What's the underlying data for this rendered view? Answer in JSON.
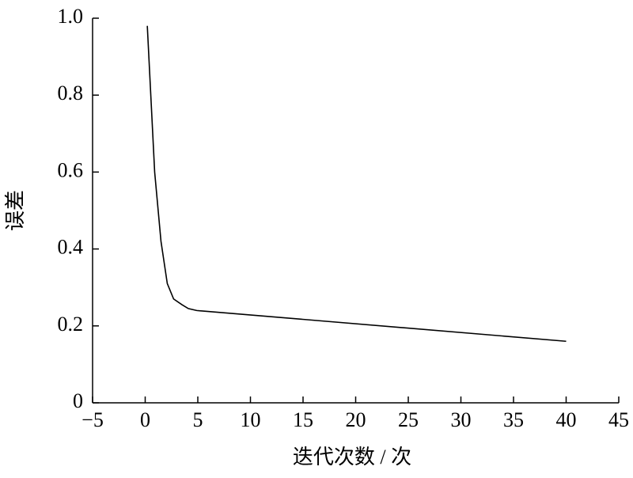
{
  "chart_data": {
    "type": "line",
    "x_label": "迭代次数 / 次",
    "y_label": "误差",
    "x": [
      0.2,
      0.9,
      1.5,
      2.1,
      2.7,
      3.5,
      4.1,
      4.9,
      40
    ],
    "series": [
      {
        "name": "误差",
        "color": "#000000",
        "values": [
          0.98,
          0.6,
          0.42,
          0.31,
          0.27,
          0.255,
          0.245,
          0.24,
          0.16
        ]
      }
    ],
    "xlim": [
      -5,
      45
    ],
    "xticks": [
      {
        "value": -5,
        "label": "−5"
      },
      0,
      5,
      10,
      15,
      20,
      25,
      30,
      35,
      40,
      45
    ],
    "ylim": [
      0,
      1
    ],
    "yticks": [
      0,
      0.2,
      0.4,
      0.6,
      0.8,
      {
        "value": 1,
        "label": "1.0"
      }
    ],
    "grid": false
  }
}
